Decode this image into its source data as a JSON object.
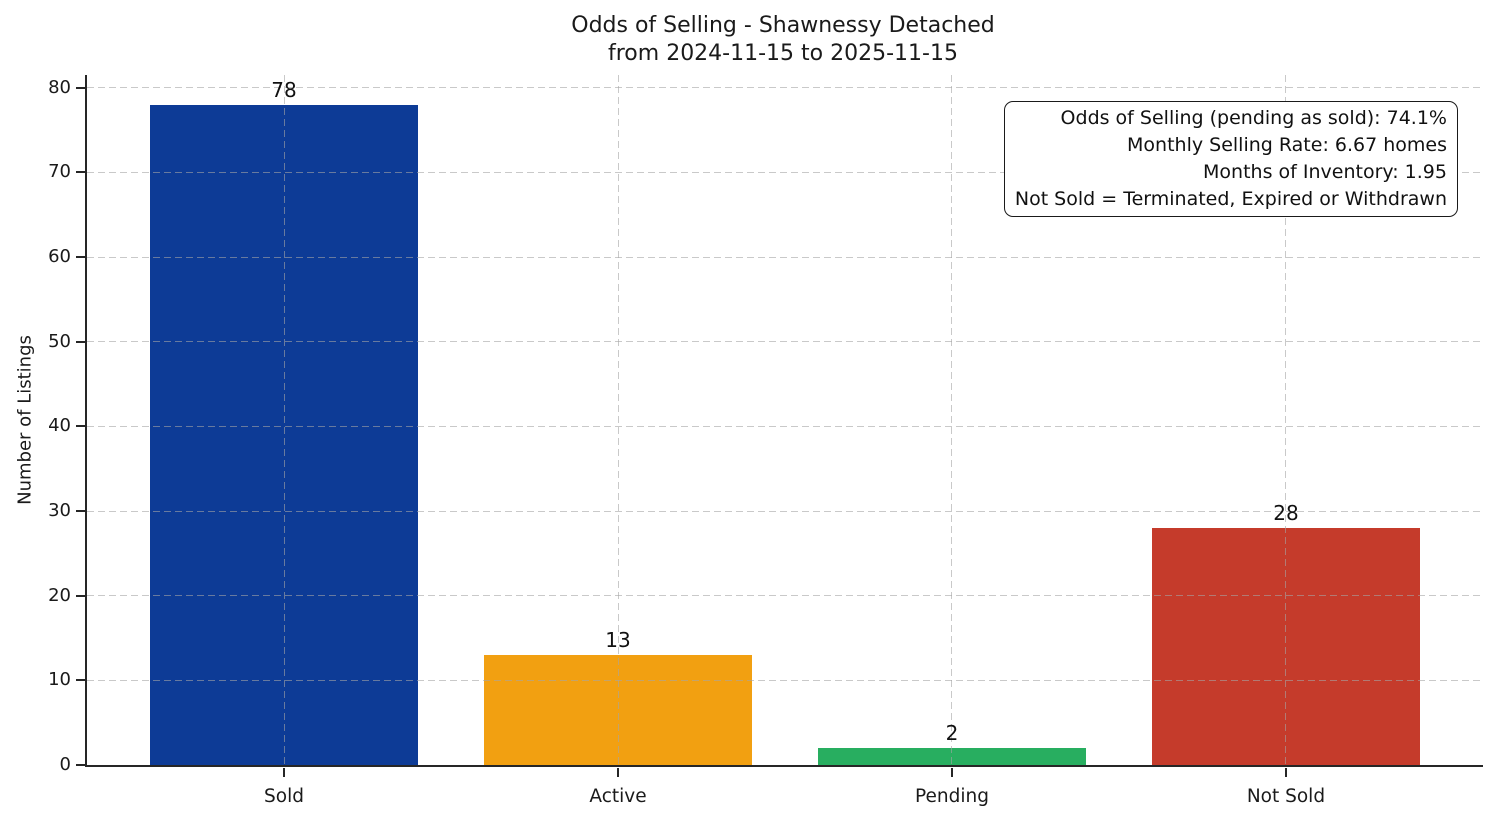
{
  "chart_data": {
    "type": "bar",
    "title": "Odds of Selling - Shawnessy Detached",
    "subtitle": "from 2024-11-15 to 2025-11-15",
    "categories": [
      "Sold",
      "Active",
      "Pending",
      "Not Sold"
    ],
    "values": [
      78,
      13,
      2,
      28
    ],
    "bar_colors": [
      "#0d3b96",
      "#f2a011",
      "#28ae60",
      "#c53b2b"
    ],
    "xlabel": "",
    "ylabel": "Number of Listings",
    "ylim": [
      0,
      81.5
    ],
    "yticks": [
      0,
      10,
      20,
      30,
      40,
      50,
      60,
      70,
      80
    ],
    "grid": "dashed, both axes, drawn above bars",
    "legend": "none",
    "annotation_lines": [
      "Odds of Selling (pending as sold): 74.1%",
      "Monthly Selling Rate: 6.67 homes",
      "Months of Inventory: 1.95",
      "Not Sold = Terminated, Expired or Withdrawn"
    ]
  }
}
